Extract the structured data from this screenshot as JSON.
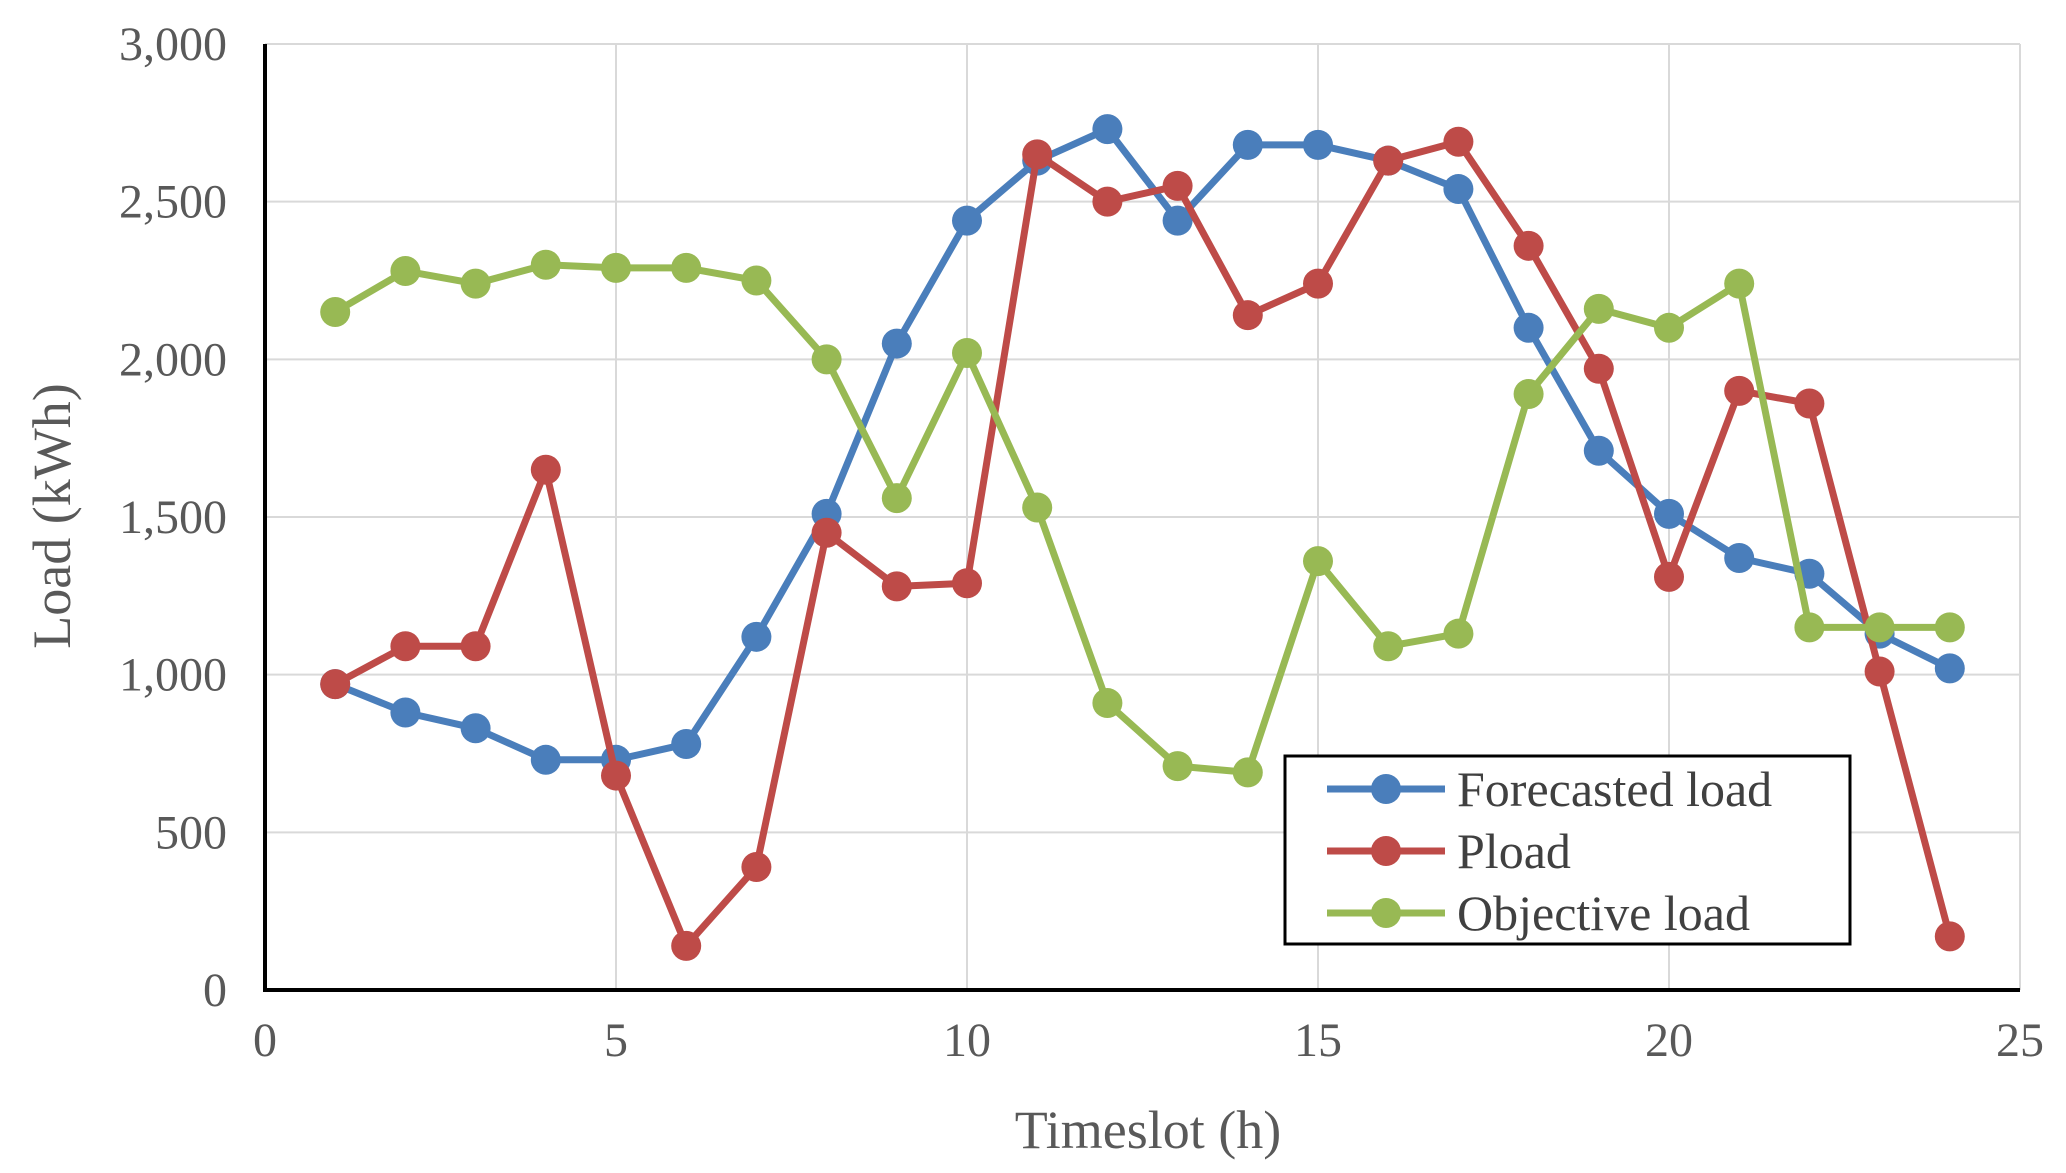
{
  "chart_data": {
    "type": "line",
    "title": "",
    "xlabel": "Timeslot (h)",
    "ylabel": "Load (kWh)",
    "xlim": [
      0,
      25
    ],
    "ylim": [
      0,
      3000
    ],
    "xticks": [
      0,
      5,
      10,
      15,
      20,
      25
    ],
    "xtick_labels": [
      "0",
      "5",
      "10",
      "15",
      "20",
      "25"
    ],
    "yticks": [
      0,
      500,
      1000,
      1500,
      2000,
      2500,
      3000
    ],
    "ytick_labels": [
      "0",
      "500",
      "1,000",
      "1,500",
      "2,000",
      "2,500",
      "3,000"
    ],
    "grid": true,
    "legend_position": "bottom-right",
    "x": [
      1,
      2,
      3,
      4,
      5,
      6,
      7,
      8,
      9,
      10,
      11,
      12,
      13,
      14,
      15,
      16,
      17,
      18,
      19,
      20,
      21,
      22,
      23,
      24
    ],
    "series": [
      {
        "name": "Forecasted load",
        "color": "#4a7ebb",
        "values": [
          970,
          880,
          830,
          730,
          730,
          780,
          1120,
          1510,
          2050,
          2440,
          2630,
          2730,
          2440,
          2680,
          2680,
          2630,
          2540,
          2100,
          1710,
          1510,
          1370,
          1320,
          1130,
          1020
        ]
      },
      {
        "name": "Pload",
        "color": "#be4b48",
        "values": [
          970,
          1090,
          1090,
          1650,
          680,
          140,
          390,
          1450,
          1280,
          1290,
          2650,
          2500,
          2550,
          2140,
          2240,
          2630,
          2690,
          2360,
          1970,
          1310,
          1900,
          1860,
          1010,
          170
        ]
      },
      {
        "name": "Objective load",
        "color": "#98b954",
        "values": [
          2150,
          2280,
          2240,
          2300,
          2290,
          2290,
          2250,
          2000,
          1560,
          2020,
          1530,
          910,
          710,
          690,
          1360,
          1090,
          1130,
          1890,
          2160,
          2100,
          2240,
          1150,
          1150,
          1150
        ]
      }
    ]
  }
}
